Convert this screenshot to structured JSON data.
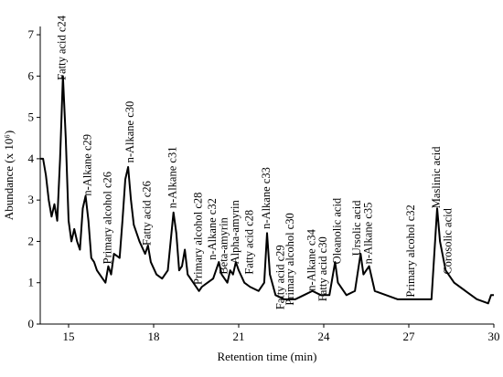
{
  "chart_data": {
    "type": "line",
    "x_label": "Retention time (min)",
    "y_label": "Abundance (x 10⁶)",
    "xlim": [
      14,
      30
    ],
    "xticks": [
      15,
      18,
      21,
      24,
      27,
      30
    ],
    "ylim": [
      0,
      7.2
    ],
    "yticks": [
      0,
      1,
      2,
      3,
      4,
      5,
      6,
      7
    ],
    "series": [
      {
        "color": "#000000",
        "x": [
          14.0,
          14.1,
          14.2,
          14.3,
          14.4,
          14.5,
          14.6,
          14.7,
          14.8,
          14.9,
          15.0,
          15.1,
          15.2,
          15.3,
          15.4,
          15.5,
          15.6,
          15.7,
          15.8,
          15.9,
          16.0,
          16.1,
          16.2,
          16.3,
          16.4,
          16.5,
          16.6,
          16.8,
          16.9,
          17.0,
          17.1,
          17.2,
          17.3,
          17.5,
          17.7,
          17.8,
          17.9,
          18.1,
          18.3,
          18.5,
          18.7,
          18.8,
          18.9,
          19.0,
          19.1,
          19.2,
          19.4,
          19.6,
          19.7,
          19.9,
          20.1,
          20.3,
          20.4,
          20.6,
          20.7,
          20.8,
          20.9,
          21.0,
          21.2,
          21.4,
          21.7,
          21.9,
          22.0,
          22.1,
          22.3,
          22.6,
          23.0,
          23.3,
          23.6,
          23.9,
          24.2,
          24.4,
          24.5,
          24.8,
          25.1,
          25.3,
          25.4,
          25.6,
          25.8,
          26.2,
          26.6,
          27.0,
          27.4,
          27.8,
          28.0,
          28.1,
          28.3,
          28.6,
          29.0,
          29.4,
          29.8,
          29.9,
          30.0
        ],
        "values": [
          4.0,
          4.0,
          3.6,
          3.0,
          2.6,
          2.9,
          2.5,
          4.0,
          6.0,
          4.5,
          2.5,
          2.0,
          2.3,
          2.0,
          1.8,
          2.8,
          3.1,
          2.5,
          1.6,
          1.5,
          1.3,
          1.2,
          1.1,
          1.0,
          1.4,
          1.2,
          1.7,
          1.6,
          2.5,
          3.5,
          3.8,
          3.0,
          2.4,
          2.0,
          1.7,
          1.9,
          1.5,
          1.2,
          1.1,
          1.3,
          2.7,
          2.2,
          1.3,
          1.4,
          1.8,
          1.2,
          1.0,
          0.8,
          0.9,
          1.0,
          1.1,
          1.5,
          1.2,
          1.0,
          1.3,
          1.2,
          1.5,
          1.3,
          1.0,
          0.9,
          0.8,
          1.0,
          2.2,
          1.2,
          0.7,
          0.6,
          0.6,
          0.7,
          0.8,
          0.7,
          0.7,
          1.5,
          1.0,
          0.7,
          0.8,
          1.7,
          1.2,
          1.4,
          0.8,
          0.7,
          0.6,
          0.6,
          0.6,
          0.6,
          2.8,
          2.0,
          1.3,
          1.0,
          0.8,
          0.6,
          0.5,
          0.7,
          0.7
        ]
      }
    ],
    "annotations": [
      {
        "text": "Fatty acid c24",
        "color": "#e0302a",
        "x": 14.8,
        "y": 5.9
      },
      {
        "text": "n-Alkane c29",
        "color": "#1a8a1a",
        "x": 15.7,
        "y": 3.1
      },
      {
        "text": "Primary alcohol c26",
        "color": "#2aa6d6",
        "x": 16.4,
        "y": 1.45
      },
      {
        "text": "n-Alkane c30",
        "color": "#1a8a1a",
        "x": 17.2,
        "y": 3.9
      },
      {
        "text": "Fatty acid c26",
        "color": "#e0302a",
        "x": 17.8,
        "y": 1.9
      },
      {
        "text": "n-Alkane c31",
        "color": "#1a8a1a",
        "x": 18.7,
        "y": 2.8
      },
      {
        "text": "Primary alcohol c28",
        "color": "#2aa6d6",
        "x": 19.6,
        "y": 0.95
      },
      {
        "text": "n-Alkane c32",
        "color": "#1a8a1a",
        "x": 20.1,
        "y": 1.55
      },
      {
        "text": "Beta-amyrin",
        "color": "#a020c0",
        "x": 20.5,
        "y": 1.2
      },
      {
        "text": "Alpha-amyrin",
        "color": "#a020c0",
        "x": 20.9,
        "y": 1.45
      },
      {
        "text": "Fatty acid c28",
        "color": "#e0302a",
        "x": 21.4,
        "y": 1.2
      },
      {
        "text": "n-Alkane c33",
        "color": "#1a8a1a",
        "x": 22.0,
        "y": 2.3
      },
      {
        "text": "Fatty acid c29",
        "color": "#e0302a",
        "x": 22.5,
        "y": 0.35
      },
      {
        "text": "Primary alcohol c30",
        "color": "#2aa6d6",
        "x": 22.85,
        "y": 0.45
      },
      {
        "text": "n-Alkane c34",
        "color": "#1a8a1a",
        "x": 23.6,
        "y": 0.8
      },
      {
        "text": "Fatty acid c30",
        "color": "#e0302a",
        "x": 24.0,
        "y": 0.55
      },
      {
        "text": "Oleanolic acid",
        "color": "#a020c0",
        "x": 24.5,
        "y": 1.45
      },
      {
        "text": "Ursolic acid",
        "color": "#a020c0",
        "x": 25.2,
        "y": 1.65
      },
      {
        "text": "n-Alkane c35",
        "color": "#1a8a1a",
        "x": 25.6,
        "y": 1.45
      },
      {
        "text": "Primary alcohol c32",
        "color": "#2aa6d6",
        "x": 27.1,
        "y": 0.65
      },
      {
        "text": "Maslinic acid",
        "color": "#a020c0",
        "x": 28.0,
        "y": 2.8
      },
      {
        "text": "Corosolic acid",
        "color": "#a020c0",
        "x": 28.4,
        "y": 1.2
      }
    ]
  }
}
